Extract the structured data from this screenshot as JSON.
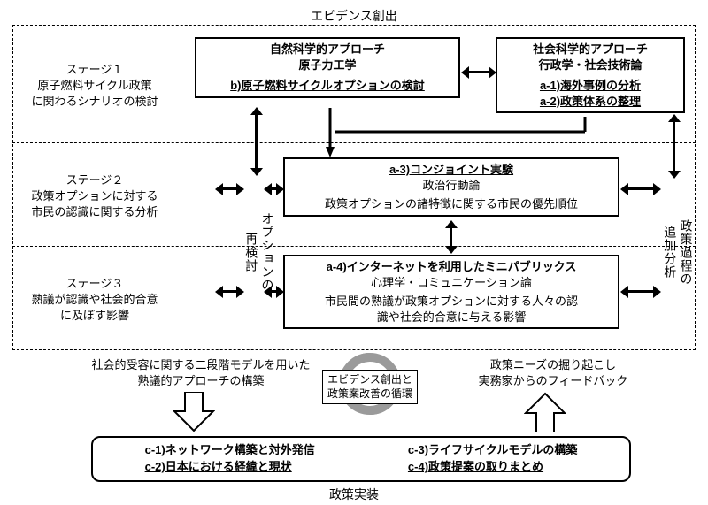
{
  "titles": {
    "top": "エビデンス創出",
    "bottom": "政策実装"
  },
  "stages": {
    "s1": {
      "name": "ステージ１",
      "desc": "原子燃料サイクル政策\nに関わるシナリオの検討"
    },
    "s2": {
      "name": "ステージ２",
      "desc": "政策オプションに対する\n市民の認識に関する分析"
    },
    "s3": {
      "name": "ステージ３",
      "desc": "熟議が認識や社会的合意\nに及ぼす影響"
    }
  },
  "boxes": {
    "nat": {
      "h1": "自然科学的アプローチ",
      "h2": "原子力工学",
      "link": "b)原子燃料サイクルオプションの検討"
    },
    "soc": {
      "h1": "社会科学的アプローチ",
      "h2": "行政学・社会技術論",
      "link1": "a-1)海外事例の分析",
      "link2": "a-2)政策体系の整理"
    },
    "conj": {
      "link": "a-3)コンジョイント実験",
      "sub": "政治行動論",
      "body": "政策オプションの諸特徴に関する市民の優先順位"
    },
    "mini": {
      "link": "a-4)インターネットを利用したミニパブリックス",
      "sub": "心理学・コミュニケーション論",
      "body": "市民間の熟議が政策オプションに対する人々の認\n識や社会的合意に与える影響"
    }
  },
  "vlabels": {
    "left": "オプションの\n再検討",
    "right": "政策過程の\n追加分析"
  },
  "cycle": {
    "label": "エビデンス創出と\n政策案改善の循環"
  },
  "flows": {
    "left": "社会的受容に関する二段階モデルを用いた\n熟議的アプローチの構築",
    "right": "政策ニーズの掘り起こし\n実務家からのフィードバック"
  },
  "bottom": {
    "c1": "c-1)ネットワーク構築と対外発信",
    "c2": "c-2)日本における経緯と現状",
    "c3": "c-3)ライフサイクルモデルの構築",
    "c4": "c-4)政策提案の取りまとめ"
  },
  "colors": {
    "line": "#000000",
    "bg": "#ffffff",
    "cycle_arrow": "#9a9a9a"
  }
}
